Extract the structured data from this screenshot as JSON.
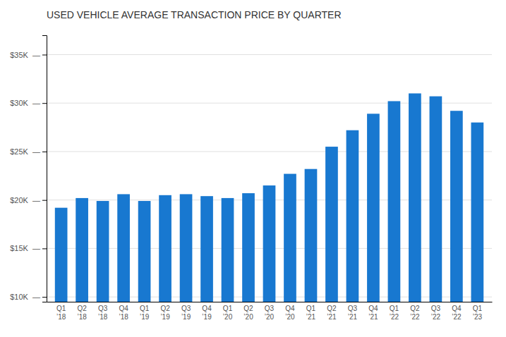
{
  "chart_data": {
    "type": "bar",
    "title": "USED VEHICLE AVERAGE TRANSACTION PRICE BY QUARTER",
    "categories": [
      "Q1\n’18",
      "Q2\n’18",
      "Q3\n’18",
      "Q4\n’18",
      "Q1\n’19",
      "Q2\n’19",
      "Q3\n’19",
      "Q4\n’19",
      "Q1\n’20",
      "Q2\n’20",
      "Q3\n’20",
      "Q4\n’20",
      "Q1\n’21",
      "Q2\n’21",
      "Q3\n’21",
      "Q4\n’21",
      "Q1\n’22",
      "Q2\n’22",
      "Q3\n’22",
      "Q4\n’22",
      "Q1\n’23"
    ],
    "values": [
      19200,
      20200,
      19900,
      20600,
      19900,
      20500,
      20600,
      20400,
      20200,
      20700,
      21500,
      22700,
      23200,
      25500,
      27200,
      28900,
      30200,
      31000,
      30700,
      29200,
      28000
    ],
    "color": "#1878d0",
    "ylim": [
      9500,
      37000
    ],
    "yticks": [
      {
        "value": 10000,
        "label": "$10K  —"
      },
      {
        "value": 15000,
        "label": "$15K  —"
      },
      {
        "value": 20000,
        "label": "$20K  —"
      },
      {
        "value": 25000,
        "label": "$25K  —"
      },
      {
        "value": 30000,
        "label": "$30K  —"
      },
      {
        "value": 35000,
        "label": "$35K  —"
      }
    ],
    "grid": true
  }
}
